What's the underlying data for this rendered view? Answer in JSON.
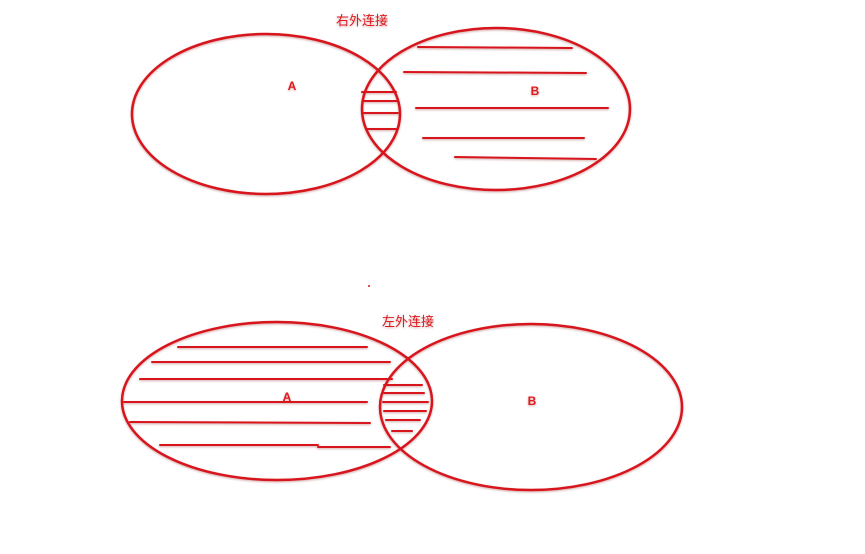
{
  "diagrams": [
    {
      "caption": "右外连接",
      "set_a_label": "A",
      "set_b_label": "B",
      "shaded": "B"
    },
    {
      "caption": "左外连接",
      "set_a_label": "A",
      "set_b_label": "B",
      "shaded": "A"
    }
  ],
  "colors": {
    "stroke": "#d8141c",
    "text": "#e0181f"
  }
}
